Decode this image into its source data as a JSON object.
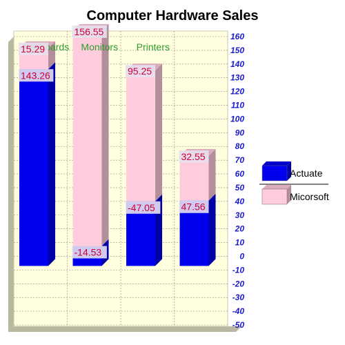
{
  "chart_data": {
    "type": "bar",
    "title": "Computer Hardware Sales",
    "categories": [
      "Keyboards",
      "Monitors",
      "Printers",
      ""
    ],
    "series": [
      {
        "name": "Actuate",
        "color": "#0000ee",
        "values": [
          143.26,
          -14.53,
          -47.05,
          47.56
        ]
      },
      {
        "name": "Micorsoft",
        "color": "#ffccdd",
        "values": [
          15.29,
          156.55,
          95.25,
          32.55
        ]
      }
    ],
    "stacked": true,
    "ylim": [
      -50,
      160
    ],
    "yticks": [
      -50,
      -40,
      -30,
      -20,
      -10,
      0,
      10,
      20,
      30,
      40,
      50,
      60,
      70,
      80,
      90,
      100,
      110,
      120,
      130,
      140,
      150,
      160
    ],
    "grid": true,
    "legend_position": "right",
    "plot_background": "#ffffe0",
    "wall_color": "#b8b8a0"
  }
}
